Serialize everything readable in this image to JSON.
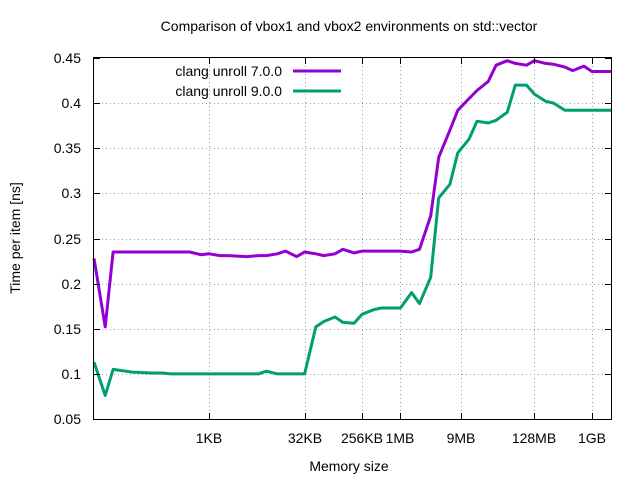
{
  "chart_data": {
    "type": "line",
    "title": "Comparison of vbox1 and vbox2 environments on std::vector",
    "xlabel": "Memory size",
    "ylabel": "Time per item [ns]",
    "x_scale": "log2",
    "x_unit": "bytes",
    "xlim": [
      16,
      2147483648
    ],
    "ylim": [
      0.05,
      0.45
    ],
    "y_ticks": [
      0.05,
      0.1,
      0.15,
      0.2,
      0.25,
      0.3,
      0.35,
      0.4,
      0.45
    ],
    "y_tick_labels": [
      "0.05",
      "0.1",
      "0.15",
      "0.2",
      "0.25",
      "0.3",
      "0.35",
      "0.4",
      "0.45"
    ],
    "x_ticks": [
      {
        "value": 1024,
        "label": "1KB"
      },
      {
        "value": 32768,
        "label": "32KB"
      },
      {
        "value": 262144,
        "label": "256KB"
      },
      {
        "value": 1048576,
        "label": "1MB"
      },
      {
        "value": 9437184,
        "label": "9MB"
      },
      {
        "value": 134217728,
        "label": "128MB"
      },
      {
        "value": 1073741824,
        "label": "1GB"
      }
    ],
    "grid": true,
    "legend_position": "top-left",
    "x": [
      16,
      24,
      32,
      64,
      128,
      192,
      256,
      512,
      768,
      1024,
      1536,
      2048,
      4096,
      6144,
      8192,
      12288,
      16384,
      24576,
      32768,
      49152,
      65536,
      98304,
      131072,
      196608,
      262144,
      393216,
      524288,
      786432,
      1048576,
      1572864,
      2097152,
      3145728,
      4194304,
      6291456,
      8388608,
      12582912,
      16777216,
      25165824,
      33554432,
      50331648,
      67108864,
      100663296,
      134217728,
      201326592,
      268435456,
      402653184,
      536870912,
      805306368,
      1073741824,
      1610612736,
      2147483648
    ],
    "series": [
      {
        "name": "clang unroll 7.0.0",
        "color": "#9400d3",
        "values": [
          0.228,
          0.152,
          0.235,
          0.235,
          0.235,
          0.235,
          0.235,
          0.235,
          0.232,
          0.233,
          0.231,
          0.231,
          0.23,
          0.231,
          0.231,
          0.233,
          0.236,
          0.23,
          0.235,
          0.233,
          0.231,
          0.233,
          0.238,
          0.234,
          0.236,
          0.236,
          0.236,
          0.236,
          0.236,
          0.235,
          0.238,
          0.275,
          0.34,
          0.37,
          0.392,
          0.405,
          0.414,
          0.424,
          0.442,
          0.447,
          0.444,
          0.442,
          0.447,
          0.444,
          0.443,
          0.44,
          0.436,
          0.441,
          0.435,
          0.435,
          0.435
        ]
      },
      {
        "name": "clang unroll 9.0.0",
        "color": "#009e73",
        "values": [
          0.113,
          0.076,
          0.105,
          0.102,
          0.101,
          0.101,
          0.1,
          0.1,
          0.1,
          0.1,
          0.1,
          0.1,
          0.1,
          0.1,
          0.103,
          0.1,
          0.1,
          0.1,
          0.1,
          0.152,
          0.158,
          0.163,
          0.157,
          0.156,
          0.166,
          0.171,
          0.173,
          0.173,
          0.173,
          0.19,
          0.178,
          0.207,
          0.295,
          0.31,
          0.345,
          0.36,
          0.38,
          0.378,
          0.381,
          0.39,
          0.42,
          0.42,
          0.41,
          0.402,
          0.4,
          0.392,
          0.392,
          0.392,
          0.392,
          0.392,
          0.392
        ]
      }
    ]
  }
}
